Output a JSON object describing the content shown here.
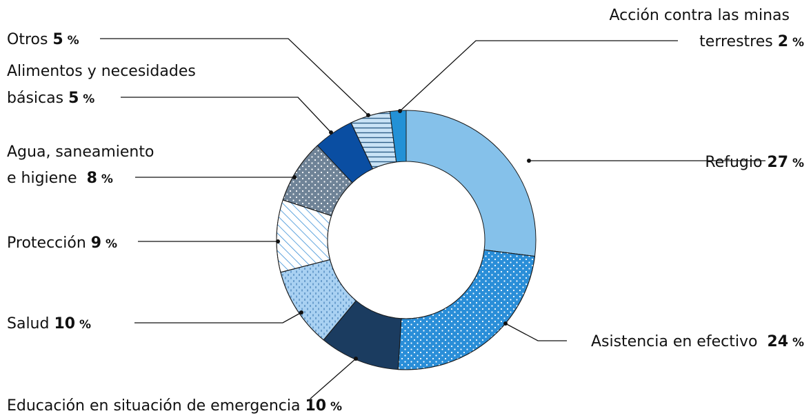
{
  "chart_data": {
    "type": "pie",
    "donut": true,
    "unit": "%",
    "slices": [
      {
        "name": "Refugio",
        "value": 27,
        "color": "#85c1ea",
        "pattern": "solid"
      },
      {
        "name": "Asistencia en efectivo",
        "value": 24,
        "color": "#2a8ed8",
        "pattern": "dots"
      },
      {
        "name": "Educación en situación de emergencia",
        "value": 10,
        "color": "#1b3c60",
        "pattern": "solid"
      },
      {
        "name": "Salud",
        "value": 10,
        "color": "#a9d1f2",
        "pattern": "dashes"
      },
      {
        "name": "Protección",
        "value": 9,
        "color": "#ffffff",
        "pattern": "diagonal"
      },
      {
        "name": "Agua, saneamiento e higiene",
        "value": 8,
        "color": "#6f8397",
        "pattern": "dots"
      },
      {
        "name": "Alimentos y necesidades básicas",
        "value": 5,
        "color": "#0a4ea2",
        "pattern": "solid"
      },
      {
        "name": "Otros",
        "value": 5,
        "color": "#c9e3f6",
        "pattern": "horizontal"
      },
      {
        "name": "Acción contra las minas terrestres",
        "value": 2,
        "color": "#2391d6",
        "pattern": "solid"
      }
    ]
  },
  "labels": {
    "refugio": {
      "text": "Refugio ",
      "num": "27",
      "pct": " %"
    },
    "asistencia": {
      "text": "Asistencia en efectivo  ",
      "num": "24",
      "pct": " %"
    },
    "educacion": {
      "text": "Educación en situación de emergencia ",
      "num": "10",
      "pct": " %"
    },
    "salud": {
      "text": "Salud ",
      "num": "10",
      "pct": " %"
    },
    "proteccion": {
      "text": "Protección ",
      "num": "9",
      "pct": " %"
    },
    "agua": {
      "line1": "Agua, saneamiento",
      "line2": "e higiene  ",
      "num": "8",
      "pct": " %"
    },
    "alimentos": {
      "line1": "Alimentos y necesidades",
      "line2": "básicas ",
      "num": "5",
      "pct": " %"
    },
    "otros": {
      "text": "Otros ",
      "num": "5",
      "pct": " %"
    },
    "minas": {
      "line1": "Acción contra las minas",
      "line2": "terrestres ",
      "num": "2",
      "pct": " %"
    }
  }
}
